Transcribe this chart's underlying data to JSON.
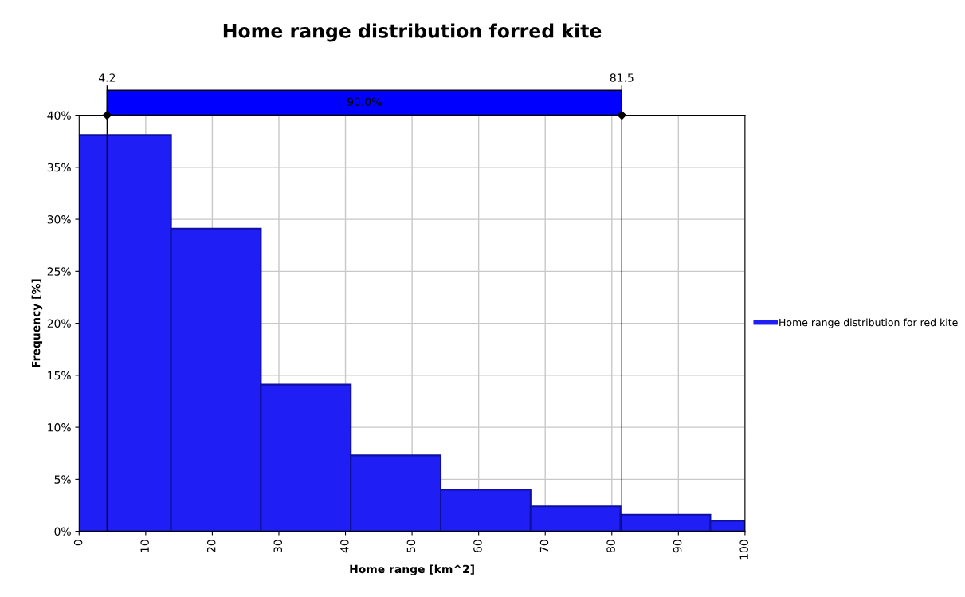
{
  "chart_data": {
    "type": "histogram",
    "title": "Home range distribution forred kite",
    "xlabel": "Home range [km^2]",
    "ylabel": "Frequency [%]",
    "bins": [
      0,
      13.8,
      27.3,
      40.8,
      54.3,
      67.8,
      81.3,
      94.8,
      100
    ],
    "series": [
      {
        "name": "Home range distribution for red kite",
        "color": "#1f1ff5",
        "values": [
          38.1,
          29.1,
          14.1,
          7.3,
          4.0,
          2.4,
          1.6,
          1.0
        ]
      }
    ],
    "xlim": [
      0,
      100
    ],
    "xticks": [
      0,
      10,
      20,
      30,
      40,
      50,
      60,
      70,
      80,
      90,
      100
    ],
    "ylim": [
      0,
      40
    ],
    "yticks": [
      {
        "value": 0,
        "label": "0%"
      },
      {
        "value": 5,
        "label": "5%"
      },
      {
        "value": 10,
        "label": "10%"
      },
      {
        "value": 15,
        "label": "15%"
      },
      {
        "value": 20,
        "label": "20%"
      },
      {
        "value": 25,
        "label": "25%"
      },
      {
        "value": 30,
        "label": "30%"
      },
      {
        "value": 35,
        "label": "35%"
      },
      {
        "value": 40,
        "label": "40%"
      }
    ],
    "ref_lines": [
      {
        "axis": "x",
        "value": 4.2,
        "label": "4.2",
        "color": "#000000"
      },
      {
        "axis": "x",
        "value": 81.5,
        "label": "81.5",
        "color": "#000000"
      }
    ],
    "annotations": [
      "90.0%"
    ],
    "grid": true,
    "legend": "right"
  }
}
